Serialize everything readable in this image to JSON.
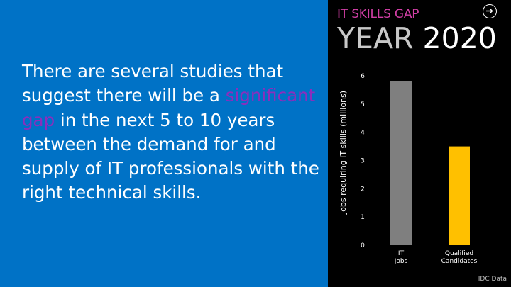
{
  "slide": {
    "body_before": "There are several studies that suggest there will be a ",
    "body_highlight": "significant gap",
    "body_after": " in the next 5 to 10 years between the demand for and supply of IT professionals with the right technical skills.",
    "kicker": "IT SKILLS GAP",
    "year_label": "YEAR",
    "year_value": "2020",
    "source": "IDC Data",
    "nav_icon": "arrow-right-circle-icon",
    "colors": {
      "left_panel": "#0072c6",
      "highlight": "#8a2ebd",
      "kicker": "#d23fa6",
      "background": "#000000"
    }
  },
  "chart_data": {
    "type": "bar",
    "categories": [
      "IT Jobs",
      "Qualified Candidates"
    ],
    "values": [
      5.8,
      3.5
    ],
    "colors": [
      "#7f7f7f",
      "#ffc000"
    ],
    "ylabel": "Jobs requiring IT skills (millions)",
    "xlabel": "",
    "title": "",
    "ylim": [
      0,
      6
    ],
    "yticks": [
      0,
      1,
      2,
      3,
      4,
      5,
      6
    ],
    "grid": false,
    "legend": "none"
  }
}
